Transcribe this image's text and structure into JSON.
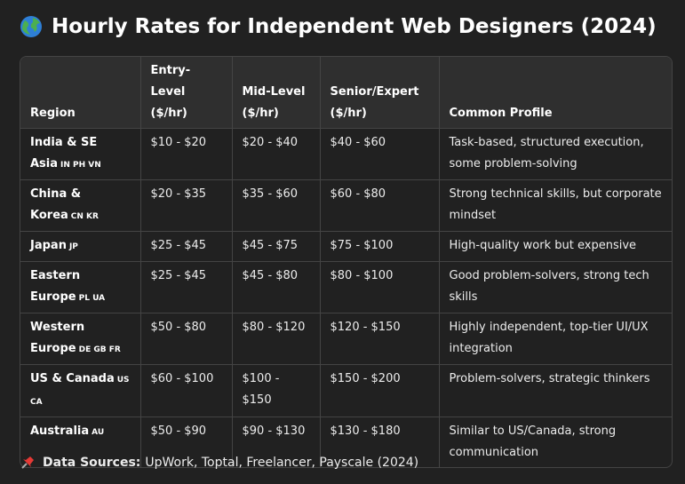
{
  "header": {
    "title": "Hourly Rates for Independent Web Designers (2024)"
  },
  "table": {
    "columns": [
      {
        "label": "Region"
      },
      {
        "label": "Entry-Level",
        "unit": "($/hr)"
      },
      {
        "label": "Mid-Level",
        "unit": "($/hr)"
      },
      {
        "label": "Senior/Expert",
        "unit": "($/hr)"
      },
      {
        "label": "Common Profile"
      }
    ],
    "rows": [
      {
        "region": "India & SE Asia",
        "codes": "IN PH VN",
        "cells": [
          "$10 - $20",
          "$20 - $40",
          "$40 - $60",
          "Task-based, structured execution, some problem-solving"
        ]
      },
      {
        "region": "China & Korea",
        "codes": "CN KR",
        "cells": [
          "$20 - $35",
          "$35 - $60",
          "$60 - $80",
          "Strong technical skills, but corporate mindset"
        ]
      },
      {
        "region": "Japan",
        "codes": "JP",
        "cells": [
          "$25 - $45",
          "$45 - $75",
          "$75 - $100",
          "High-quality work but expensive"
        ]
      },
      {
        "region": "Eastern Europe",
        "codes": "PL UA",
        "cells": [
          "$25 - $45",
          "$45 - $80",
          "$80 - $100",
          "Good problem-solvers, strong tech skills"
        ]
      },
      {
        "region": "Western Europe",
        "codes": "DE GB FR",
        "cells": [
          "$50 - $80",
          "$80 - $120",
          "$120 - $150",
          "Highly independent, top-tier UI/UX integration"
        ]
      },
      {
        "region": "US & Canada",
        "codes": "US CA",
        "cells": [
          "$60 - $100",
          "$100 - $150",
          "$150 - $200",
          "Problem-solvers, strategic thinkers"
        ]
      },
      {
        "region": "Australia",
        "codes": "AU",
        "cells": [
          "$50 - $90",
          "$90 - $130",
          "$130 - $180",
          "Similar to US/Canada, strong communication"
        ]
      }
    ]
  },
  "footer": {
    "label": "Data Sources:",
    "text": "UpWork, Toptal, Freelancer, Payscale (2024)"
  }
}
